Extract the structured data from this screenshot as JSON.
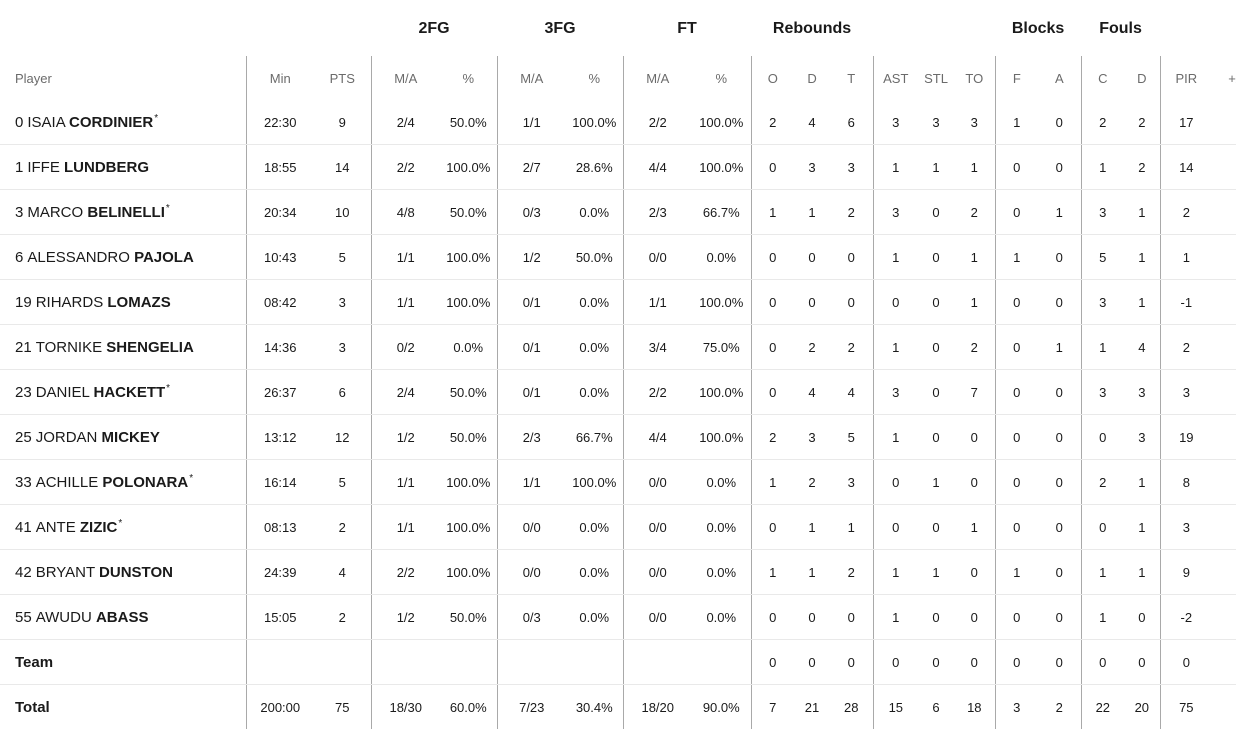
{
  "group_headers": {
    "fg2": "2FG",
    "fg3": "3FG",
    "ft": "FT",
    "rebounds": "Rebounds",
    "blocks": "Blocks",
    "fouls": "Fouls"
  },
  "columns": [
    "Player",
    "Min",
    "PTS",
    "M/A",
    "%",
    "M/A",
    "%",
    "M/A",
    "%",
    "O",
    "D",
    "T",
    "AST",
    "STL",
    "TO",
    "F",
    "A",
    "C",
    "D",
    "PIR",
    "+/-"
  ],
  "players": [
    {
      "num": "0",
      "first": "ISAIA",
      "last": "CORDINIER",
      "star": "*",
      "min": "22:30",
      "pts": "9",
      "fg2_ma": "2/4",
      "fg2_pct": "50.0%",
      "fg3_ma": "1/1",
      "fg3_pct": "100.0%",
      "ft_ma": "2/2",
      "ft_pct": "100.0%",
      "reb_o": "2",
      "reb_d": "4",
      "reb_t": "6",
      "ast": "3",
      "stl": "3",
      "to": "3",
      "blk_f": "1",
      "blk_a": "0",
      "foul_c": "2",
      "foul_d": "2",
      "pir": "17",
      "pm": ""
    },
    {
      "num": "1",
      "first": "IFFE",
      "last": "LUNDBERG",
      "star": "",
      "min": "18:55",
      "pts": "14",
      "fg2_ma": "2/2",
      "fg2_pct": "100.0%",
      "fg3_ma": "2/7",
      "fg3_pct": "28.6%",
      "ft_ma": "4/4",
      "ft_pct": "100.0%",
      "reb_o": "0",
      "reb_d": "3",
      "reb_t": "3",
      "ast": "1",
      "stl": "1",
      "to": "1",
      "blk_f": "0",
      "blk_a": "0",
      "foul_c": "1",
      "foul_d": "2",
      "pir": "14",
      "pm": ""
    },
    {
      "num": "3",
      "first": "MARCO",
      "last": "BELINELLI",
      "star": "*",
      "min": "20:34",
      "pts": "10",
      "fg2_ma": "4/8",
      "fg2_pct": "50.0%",
      "fg3_ma": "0/3",
      "fg3_pct": "0.0%",
      "ft_ma": "2/3",
      "ft_pct": "66.7%",
      "reb_o": "1",
      "reb_d": "1",
      "reb_t": "2",
      "ast": "3",
      "stl": "0",
      "to": "2",
      "blk_f": "0",
      "blk_a": "1",
      "foul_c": "3",
      "foul_d": "1",
      "pir": "2",
      "pm": ""
    },
    {
      "num": "6",
      "first": "ALESSANDRO",
      "last": "PAJOLA",
      "star": "",
      "min": "10:43",
      "pts": "5",
      "fg2_ma": "1/1",
      "fg2_pct": "100.0%",
      "fg3_ma": "1/2",
      "fg3_pct": "50.0%",
      "ft_ma": "0/0",
      "ft_pct": "0.0%",
      "reb_o": "0",
      "reb_d": "0",
      "reb_t": "0",
      "ast": "1",
      "stl": "0",
      "to": "1",
      "blk_f": "1",
      "blk_a": "0",
      "foul_c": "5",
      "foul_d": "1",
      "pir": "1",
      "pm": ""
    },
    {
      "num": "19",
      "first": "RIHARDS",
      "last": "LOMAZS",
      "star": "",
      "min": "08:42",
      "pts": "3",
      "fg2_ma": "1/1",
      "fg2_pct": "100.0%",
      "fg3_ma": "0/1",
      "fg3_pct": "0.0%",
      "ft_ma": "1/1",
      "ft_pct": "100.0%",
      "reb_o": "0",
      "reb_d": "0",
      "reb_t": "0",
      "ast": "0",
      "stl": "0",
      "to": "1",
      "blk_f": "0",
      "blk_a": "0",
      "foul_c": "3",
      "foul_d": "1",
      "pir": "-1",
      "pm": ""
    },
    {
      "num": "21",
      "first": "TORNIKE",
      "last": "SHENGELIA",
      "star": "",
      "min": "14:36",
      "pts": "3",
      "fg2_ma": "0/2",
      "fg2_pct": "0.0%",
      "fg3_ma": "0/1",
      "fg3_pct": "0.0%",
      "ft_ma": "3/4",
      "ft_pct": "75.0%",
      "reb_o": "0",
      "reb_d": "2",
      "reb_t": "2",
      "ast": "1",
      "stl": "0",
      "to": "2",
      "blk_f": "0",
      "blk_a": "1",
      "foul_c": "1",
      "foul_d": "4",
      "pir": "2",
      "pm": ""
    },
    {
      "num": "23",
      "first": "DANIEL",
      "last": "HACKETT",
      "star": "*",
      "min": "26:37",
      "pts": "6",
      "fg2_ma": "2/4",
      "fg2_pct": "50.0%",
      "fg3_ma": "0/1",
      "fg3_pct": "0.0%",
      "ft_ma": "2/2",
      "ft_pct": "100.0%",
      "reb_o": "0",
      "reb_d": "4",
      "reb_t": "4",
      "ast": "3",
      "stl": "0",
      "to": "7",
      "blk_f": "0",
      "blk_a": "0",
      "foul_c": "3",
      "foul_d": "3",
      "pir": "3",
      "pm": ""
    },
    {
      "num": "25",
      "first": "JORDAN",
      "last": "MICKEY",
      "star": "",
      "min": "13:12",
      "pts": "12",
      "fg2_ma": "1/2",
      "fg2_pct": "50.0%",
      "fg3_ma": "2/3",
      "fg3_pct": "66.7%",
      "ft_ma": "4/4",
      "ft_pct": "100.0%",
      "reb_o": "2",
      "reb_d": "3",
      "reb_t": "5",
      "ast": "1",
      "stl": "0",
      "to": "0",
      "blk_f": "0",
      "blk_a": "0",
      "foul_c": "0",
      "foul_d": "3",
      "pir": "19",
      "pm": ""
    },
    {
      "num": "33",
      "first": "ACHILLE",
      "last": "POLONARA",
      "star": "*",
      "min": "16:14",
      "pts": "5",
      "fg2_ma": "1/1",
      "fg2_pct": "100.0%",
      "fg3_ma": "1/1",
      "fg3_pct": "100.0%",
      "ft_ma": "0/0",
      "ft_pct": "0.0%",
      "reb_o": "1",
      "reb_d": "2",
      "reb_t": "3",
      "ast": "0",
      "stl": "1",
      "to": "0",
      "blk_f": "0",
      "blk_a": "0",
      "foul_c": "2",
      "foul_d": "1",
      "pir": "8",
      "pm": ""
    },
    {
      "num": "41",
      "first": "ANTE",
      "last": "ZIZIC",
      "star": "*",
      "min": "08:13",
      "pts": "2",
      "fg2_ma": "1/1",
      "fg2_pct": "100.0%",
      "fg3_ma": "0/0",
      "fg3_pct": "0.0%",
      "ft_ma": "0/0",
      "ft_pct": "0.0%",
      "reb_o": "0",
      "reb_d": "1",
      "reb_t": "1",
      "ast": "0",
      "stl": "0",
      "to": "1",
      "blk_f": "0",
      "blk_a": "0",
      "foul_c": "0",
      "foul_d": "1",
      "pir": "3",
      "pm": ""
    },
    {
      "num": "42",
      "first": "BRYANT",
      "last": "DUNSTON",
      "star": "",
      "min": "24:39",
      "pts": "4",
      "fg2_ma": "2/2",
      "fg2_pct": "100.0%",
      "fg3_ma": "0/0",
      "fg3_pct": "0.0%",
      "ft_ma": "0/0",
      "ft_pct": "0.0%",
      "reb_o": "1",
      "reb_d": "1",
      "reb_t": "2",
      "ast": "1",
      "stl": "1",
      "to": "0",
      "blk_f": "1",
      "blk_a": "0",
      "foul_c": "1",
      "foul_d": "1",
      "pir": "9",
      "pm": ""
    },
    {
      "num": "55",
      "first": "AWUDU",
      "last": "ABASS",
      "star": "",
      "min": "15:05",
      "pts": "2",
      "fg2_ma": "1/2",
      "fg2_pct": "50.0%",
      "fg3_ma": "0/3",
      "fg3_pct": "0.0%",
      "ft_ma": "0/0",
      "ft_pct": "0.0%",
      "reb_o": "0",
      "reb_d": "0",
      "reb_t": "0",
      "ast": "1",
      "stl": "0",
      "to": "0",
      "blk_f": "0",
      "blk_a": "0",
      "foul_c": "1",
      "foul_d": "0",
      "pir": "-2",
      "pm": ""
    }
  ],
  "team": {
    "label": "Team",
    "min": "",
    "pts": "",
    "fg2_ma": "",
    "fg2_pct": "",
    "fg3_ma": "",
    "fg3_pct": "",
    "ft_ma": "",
    "ft_pct": "",
    "reb_o": "0",
    "reb_d": "0",
    "reb_t": "0",
    "ast": "0",
    "stl": "0",
    "to": "0",
    "blk_f": "0",
    "blk_a": "0",
    "foul_c": "0",
    "foul_d": "0",
    "pir": "0",
    "pm": ""
  },
  "total": {
    "label": "Total",
    "min": "200:00",
    "pts": "75",
    "fg2_ma": "18/30",
    "fg2_pct": "60.0%",
    "fg3_ma": "7/23",
    "fg3_pct": "30.4%",
    "ft_ma": "18/20",
    "ft_pct": "90.0%",
    "reb_o": "7",
    "reb_d": "21",
    "reb_t": "28",
    "ast": "15",
    "stl": "6",
    "to": "18",
    "blk_f": "3",
    "blk_a": "2",
    "foul_c": "22",
    "foul_d": "20",
    "pir": "75",
    "pm": ""
  }
}
